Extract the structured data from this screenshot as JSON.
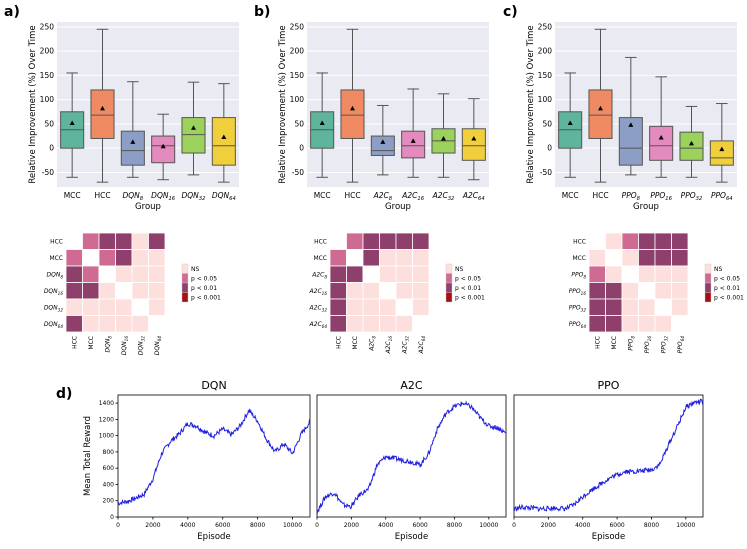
{
  "panel_labels": [
    "a)",
    "b)",
    "c)",
    "d)"
  ],
  "chart_data": [
    {
      "type": "box",
      "panel": "a)",
      "xlabel": "Group",
      "ylabel": "Relative Improvement (%) Over Time",
      "ylim": [
        -80,
        260
      ],
      "yticks": [
        "-50",
        "0",
        "50",
        "100",
        "150",
        "200",
        "250"
      ],
      "ytick_values": [
        -50,
        0,
        50,
        100,
        150,
        200,
        250
      ],
      "categories": [
        "MCC",
        "HCC",
        "DQN8",
        "DQN16",
        "DQN32",
        "DQN64"
      ],
      "tick_labels": [
        {
          "main": "MCC",
          "sub": ""
        },
        {
          "main": "HCC",
          "sub": ""
        },
        {
          "main": "DQN",
          "sub": "8"
        },
        {
          "main": "DQN",
          "sub": "16"
        },
        {
          "main": "DQN",
          "sub": "32"
        },
        {
          "main": "DQN",
          "sub": "64"
        }
      ],
      "boxes": [
        {
          "whislo": -60,
          "q1": 0,
          "med": 38,
          "q3": 75,
          "whishi": 155,
          "mean": 52,
          "color": "#5fb49c"
        },
        {
          "whislo": -70,
          "q1": 20,
          "med": 68,
          "q3": 120,
          "whishi": 245,
          "mean": 82,
          "color": "#f08a63"
        },
        {
          "whislo": -60,
          "q1": -35,
          "med": -5,
          "q3": 35,
          "whishi": 137,
          "mean": 13,
          "color": "#8c9dc6"
        },
        {
          "whislo": -65,
          "q1": -30,
          "med": 5,
          "q3": 25,
          "whishi": 70,
          "mean": 4,
          "color": "#e38abe"
        },
        {
          "whislo": -55,
          "q1": -10,
          "med": 28,
          "q3": 63,
          "whishi": 136,
          "mean": 42,
          "color": "#9cd15c"
        },
        {
          "whislo": -70,
          "q1": -35,
          "med": 5,
          "q3": 63,
          "whishi": 133,
          "mean": 23,
          "color": "#f1cf3c"
        }
      ]
    },
    {
      "type": "box",
      "panel": "b)",
      "xlabel": "Group",
      "ylabel": "Relative Improvement (%) Over Time",
      "ylim": [
        -80,
        260
      ],
      "yticks": [
        "-50",
        "0",
        "50",
        "100",
        "150",
        "200",
        "250"
      ],
      "ytick_values": [
        -50,
        0,
        50,
        100,
        150,
        200,
        250
      ],
      "categories": [
        "MCC",
        "HCC",
        "A2C8",
        "A2C16",
        "A2C32",
        "A2C64"
      ],
      "tick_labels": [
        {
          "main": "MCC",
          "sub": ""
        },
        {
          "main": "HCC",
          "sub": ""
        },
        {
          "main": "A2C",
          "sub": "8"
        },
        {
          "main": "A2C",
          "sub": "16"
        },
        {
          "main": "A2C",
          "sub": "32"
        },
        {
          "main": "A2C",
          "sub": "64"
        }
      ],
      "boxes": [
        {
          "whislo": -60,
          "q1": 0,
          "med": 38,
          "q3": 75,
          "whishi": 155,
          "mean": 52,
          "color": "#5fb49c"
        },
        {
          "whislo": -70,
          "q1": 20,
          "med": 68,
          "q3": 120,
          "whishi": 245,
          "mean": 82,
          "color": "#f08a63"
        },
        {
          "whislo": -55,
          "q1": -15,
          "med": -5,
          "q3": 25,
          "whishi": 88,
          "mean": 13,
          "color": "#8c9dc6"
        },
        {
          "whislo": -60,
          "q1": -20,
          "med": 5,
          "q3": 35,
          "whishi": 122,
          "mean": 15,
          "color": "#e38abe"
        },
        {
          "whislo": -60,
          "q1": -10,
          "med": 15,
          "q3": 40,
          "whishi": 112,
          "mean": 20,
          "color": "#9cd15c"
        },
        {
          "whislo": -65,
          "q1": -25,
          "med": 5,
          "q3": 40,
          "whishi": 102,
          "mean": 20,
          "color": "#f1cf3c"
        }
      ]
    },
    {
      "type": "box",
      "panel": "c)",
      "xlabel": "Group",
      "ylabel": "Relative Improvement (%) Over Time",
      "ylim": [
        -80,
        260
      ],
      "yticks": [
        "-50",
        "0",
        "50",
        "100",
        "150",
        "200",
        "250"
      ],
      "ytick_values": [
        -50,
        0,
        50,
        100,
        150,
        200,
        250
      ],
      "categories": [
        "MCC",
        "HCC",
        "PPO8",
        "PPO16",
        "PPO32",
        "PPO64"
      ],
      "tick_labels": [
        {
          "main": "MCC",
          "sub": ""
        },
        {
          "main": "HCC",
          "sub": ""
        },
        {
          "main": "PPO",
          "sub": "8"
        },
        {
          "main": "PPO",
          "sub": "16"
        },
        {
          "main": "PPO",
          "sub": "32"
        },
        {
          "main": "PPO",
          "sub": "64"
        }
      ],
      "boxes": [
        {
          "whislo": -60,
          "q1": 0,
          "med": 38,
          "q3": 75,
          "whishi": 155,
          "mean": 52,
          "color": "#5fb49c"
        },
        {
          "whislo": -70,
          "q1": 20,
          "med": 68,
          "q3": 120,
          "whishi": 245,
          "mean": 82,
          "color": "#f08a63"
        },
        {
          "whislo": -55,
          "q1": -35,
          "med": 0,
          "q3": 63,
          "whishi": 187,
          "mean": 48,
          "color": "#8c9dc6"
        },
        {
          "whislo": -60,
          "q1": -25,
          "med": 5,
          "q3": 45,
          "whishi": 147,
          "mean": 22,
          "color": "#e38abe"
        },
        {
          "whislo": -60,
          "q1": -25,
          "med": 0,
          "q3": 33,
          "whishi": 86,
          "mean": 10,
          "color": "#9cd15c"
        },
        {
          "whislo": -70,
          "q1": -35,
          "med": -20,
          "q3": 15,
          "whishi": 92,
          "mean": -2,
          "color": "#f1cf3c"
        }
      ]
    },
    {
      "type": "heatmap",
      "panel": "a)",
      "labels": [
        {
          "main": "HCC",
          "sub": ""
        },
        {
          "main": "MCC",
          "sub": ""
        },
        {
          "main": "DQN",
          "sub": "8"
        },
        {
          "main": "DQN",
          "sub": "16"
        },
        {
          "main": "DQN",
          "sub": "32"
        },
        {
          "main": "DQN",
          "sub": "64"
        }
      ],
      "matrix": [
        [
          0,
          2,
          4,
          4,
          1,
          4
        ],
        [
          2,
          0,
          2,
          4,
          1,
          1
        ],
        [
          4,
          2,
          0,
          1,
          1,
          1
        ],
        [
          4,
          4,
          1,
          0,
          1,
          1
        ],
        [
          1,
          1,
          1,
          1,
          0,
          1
        ],
        [
          4,
          1,
          1,
          1,
          1,
          0
        ]
      ],
      "legend": [
        "NS",
        "p < 0.05",
        "p < 0.01",
        "p < 0.001"
      ]
    },
    {
      "type": "heatmap",
      "panel": "b)",
      "labels": [
        {
          "main": "HCC",
          "sub": ""
        },
        {
          "main": "MCC",
          "sub": ""
        },
        {
          "main": "A2C",
          "sub": "8"
        },
        {
          "main": "A2C",
          "sub": "16"
        },
        {
          "main": "A2C",
          "sub": "32"
        },
        {
          "main": "A2C",
          "sub": "64"
        }
      ],
      "matrix": [
        [
          0,
          2,
          4,
          4,
          4,
          4
        ],
        [
          2,
          0,
          4,
          1,
          1,
          1
        ],
        [
          4,
          4,
          0,
          1,
          1,
          1
        ],
        [
          4,
          1,
          1,
          0,
          1,
          1
        ],
        [
          4,
          1,
          1,
          1,
          0,
          1
        ],
        [
          4,
          1,
          1,
          1,
          1,
          0
        ]
      ],
      "legend": [
        "NS",
        "p < 0.05",
        "p < 0.01",
        "p < 0.001"
      ]
    },
    {
      "type": "heatmap",
      "panel": "c)",
      "labels": [
        {
          "main": "HCC",
          "sub": ""
        },
        {
          "main": "MCC",
          "sub": ""
        },
        {
          "main": "PPO",
          "sub": "8"
        },
        {
          "main": "PPO",
          "sub": "16"
        },
        {
          "main": "PPO",
          "sub": "32"
        },
        {
          "main": "PPO",
          "sub": "64"
        }
      ],
      "matrix": [
        [
          0,
          1,
          2,
          4,
          4,
          4
        ],
        [
          1,
          0,
          1,
          4,
          4,
          4
        ],
        [
          2,
          1,
          0,
          1,
          1,
          1
        ],
        [
          4,
          4,
          1,
          0,
          1,
          1
        ],
        [
          4,
          4,
          1,
          1,
          0,
          1
        ],
        [
          4,
          4,
          1,
          1,
          1,
          0
        ]
      ],
      "legend": [
        "NS",
        "p < 0.05",
        "p < 0.01",
        "p < 0.001"
      ]
    },
    {
      "type": "line",
      "panel": "d)",
      "title": "DQN",
      "xlabel": "Episode",
      "ylabel": "Mean Total Reward",
      "xlim": [
        0,
        11000
      ],
      "ylim": [
        0,
        1500
      ],
      "xticks": [
        "0",
        "2000",
        "4000",
        "6000",
        "8000",
        "10000"
      ],
      "xtick_values": [
        0,
        2000,
        4000,
        6000,
        8000,
        10000
      ],
      "yticks": [
        "0",
        "200",
        "400",
        "600",
        "800",
        "1000",
        "1200",
        "1400"
      ],
      "ytick_values": [
        0,
        200,
        400,
        600,
        800,
        1000,
        1200,
        1400
      ],
      "x": [
        0,
        500,
        1000,
        1500,
        2000,
        2500,
        3000,
        3500,
        4000,
        4500,
        5000,
        5500,
        6000,
        6500,
        7000,
        7500,
        8000,
        8500,
        9000,
        9500,
        10000,
        10500,
        11000
      ],
      "y": [
        170,
        190,
        230,
        280,
        470,
        780,
        930,
        1020,
        1150,
        1120,
        1040,
        1000,
        1080,
        1010,
        1120,
        1310,
        1180,
        960,
        800,
        900,
        780,
        1020,
        1170
      ]
    },
    {
      "type": "line",
      "panel": "d)",
      "title": "A2C",
      "xlabel": "Episode",
      "ylabel": "Mean Total Reward",
      "xlim": [
        0,
        11000
      ],
      "ylim": [
        0,
        1500
      ],
      "xticks": [
        "0",
        "2000",
        "4000",
        "6000",
        "8000",
        "10000"
      ],
      "xtick_values": [
        0,
        2000,
        4000,
        6000,
        8000,
        10000
      ],
      "yticks": [
        "0",
        "200",
        "400",
        "600",
        "800",
        "1000",
        "1200",
        "1400"
      ],
      "ytick_values": [
        0,
        200,
        400,
        600,
        800,
        1000,
        1200,
        1400
      ],
      "x": [
        0,
        500,
        1000,
        1500,
        2000,
        2500,
        3000,
        3500,
        4000,
        4500,
        5000,
        5500,
        6000,
        6500,
        7000,
        7500,
        8000,
        8500,
        9000,
        9500,
        10000,
        10500,
        11000
      ],
      "y": [
        60,
        250,
        300,
        150,
        130,
        280,
        340,
        640,
        740,
        720,
        700,
        680,
        640,
        780,
        1080,
        1270,
        1360,
        1400,
        1350,
        1220,
        1120,
        1100,
        1030
      ]
    },
    {
      "type": "line",
      "panel": "d)",
      "title": "PPO",
      "xlabel": "Episode",
      "ylabel": "Mean Total Reward",
      "xlim": [
        0,
        11000
      ],
      "ylim": [
        0,
        1500
      ],
      "xticks": [
        "0",
        "2000",
        "4000",
        "6000",
        "8000",
        "10000"
      ],
      "xtick_values": [
        0,
        2000,
        4000,
        6000,
        8000,
        10000
      ],
      "yticks": [
        "0",
        "200",
        "400",
        "600",
        "800",
        "1000",
        "1200",
        "1400"
      ],
      "ytick_values": [
        0,
        200,
        400,
        600,
        800,
        1000,
        1200,
        1400
      ],
      "x": [
        0,
        500,
        1000,
        1500,
        2000,
        2500,
        3000,
        3500,
        4000,
        4500,
        5000,
        5500,
        6000,
        6500,
        7000,
        7500,
        8000,
        8500,
        9000,
        9500,
        10000,
        10500,
        11000
      ],
      "y": [
        100,
        120,
        110,
        100,
        105,
        110,
        100,
        150,
        250,
        330,
        400,
        470,
        520,
        560,
        560,
        570,
        580,
        650,
        890,
        1110,
        1350,
        1410,
        1420
      ]
    }
  ]
}
